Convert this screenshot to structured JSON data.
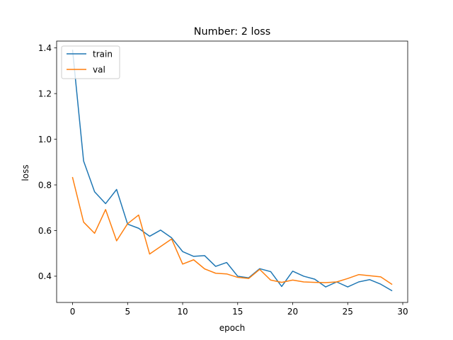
{
  "chart_data": {
    "type": "line",
    "title": "Number: 2 loss",
    "xlabel": "epoch",
    "ylabel": "loss",
    "xlim": [
      -1.45,
      30.45
    ],
    "ylim": [
      0.285,
      1.43
    ],
    "xticks": [
      0,
      5,
      10,
      15,
      20,
      25,
      30
    ],
    "xtick_labels": [
      "0",
      "5",
      "10",
      "15",
      "20",
      "25",
      "30"
    ],
    "yticks": [
      0.4,
      0.6,
      0.8,
      1.0,
      1.2,
      1.4
    ],
    "ytick_labels": [
      "0.4",
      "0.6",
      "0.8",
      "1.0",
      "1.2",
      "1.4"
    ],
    "grid": false,
    "legend_position": "upper left",
    "x": [
      0,
      1,
      2,
      3,
      4,
      5,
      6,
      7,
      8,
      9,
      10,
      11,
      12,
      13,
      14,
      15,
      16,
      17,
      18,
      19,
      20,
      21,
      22,
      23,
      24,
      25,
      26,
      27,
      28,
      29
    ],
    "series": [
      {
        "name": "train",
        "color": "#1f77b4",
        "values": [
          1.39,
          0.905,
          0.77,
          0.718,
          0.78,
          0.628,
          0.61,
          0.575,
          0.602,
          0.568,
          0.508,
          0.487,
          0.49,
          0.443,
          0.46,
          0.4,
          0.393,
          0.433,
          0.42,
          0.355,
          0.422,
          0.4,
          0.387,
          0.353,
          0.375,
          0.353,
          0.375,
          0.385,
          0.365,
          0.337
        ]
      },
      {
        "name": "val",
        "color": "#ff7f0e",
        "values": [
          0.832,
          0.637,
          0.588,
          0.692,
          0.555,
          0.63,
          0.668,
          0.497,
          0.53,
          0.563,
          0.453,
          0.472,
          0.432,
          0.413,
          0.41,
          0.395,
          0.39,
          0.43,
          0.383,
          0.373,
          0.383,
          0.375,
          0.373,
          0.372,
          0.375,
          0.39,
          0.407,
          0.402,
          0.397,
          0.365
        ]
      }
    ]
  }
}
